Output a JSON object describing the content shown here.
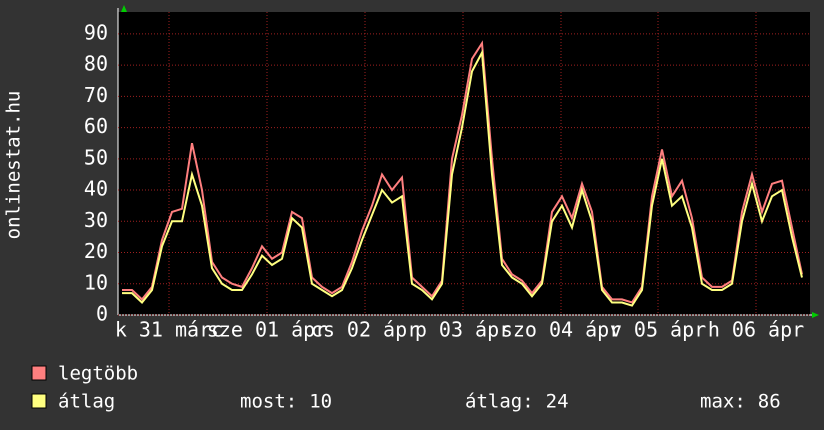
{
  "chart_data": {
    "type": "line",
    "ylabel": "onlinestat.hu",
    "x": [
      0,
      1,
      2,
      3,
      4,
      5,
      6,
      7,
      8,
      9,
      10,
      11,
      12,
      13,
      14,
      15,
      16,
      17,
      18,
      19,
      20,
      21,
      22,
      23,
      24,
      25,
      26,
      27,
      28,
      29,
      30,
      31,
      32,
      33,
      34,
      35,
      36,
      37,
      38,
      39,
      40,
      41,
      42,
      43,
      44,
      45,
      46,
      47,
      48,
      49,
      50,
      51,
      52,
      53,
      54,
      55,
      56,
      57,
      58,
      59,
      60,
      61,
      62,
      63,
      64,
      65,
      66,
      67,
      68
    ],
    "xlim": [
      -0.4,
      68.8
    ],
    "xticks": [
      {
        "value": 4.7,
        "label": "k 31 márc"
      },
      {
        "value": 14.5,
        "label": "sze 01 ápr"
      },
      {
        "value": 24.3,
        "label": "cs 02 ápr"
      },
      {
        "value": 34.1,
        "label": "p 03 ápr"
      },
      {
        "value": 43.9,
        "label": "szo 04 ápr"
      },
      {
        "value": 53.6,
        "label": "v 05 ápr"
      },
      {
        "value": 63.4,
        "label": "h 06 ápr"
      }
    ],
    "ylim": [
      0,
      97
    ],
    "yticks": [
      0,
      10,
      20,
      30,
      40,
      50,
      60,
      70,
      80,
      90
    ],
    "grid": true,
    "series": [
      {
        "name": "legtöbb",
        "color": "#ff7f7f",
        "values": [
          8,
          8,
          5,
          9,
          24,
          33,
          34,
          55,
          40,
          17,
          12,
          10,
          9,
          15,
          22,
          18,
          20,
          33,
          31,
          12,
          9,
          7,
          9,
          17,
          27,
          35,
          45,
          40,
          44,
          12,
          9,
          6,
          11,
          50,
          64,
          82,
          87,
          50,
          18,
          13,
          11,
          7,
          11,
          33,
          38,
          31,
          42,
          33,
          9,
          5,
          5,
          4,
          9,
          38,
          53,
          38,
          43,
          31,
          12,
          9,
          9,
          11,
          33,
          45,
          33,
          42,
          43,
          28,
          13
        ]
      },
      {
        "name": "átlag",
        "color": "#ffff80",
        "values": [
          7,
          7,
          4,
          8,
          22,
          30,
          30,
          45,
          35,
          15,
          10,
          8,
          8,
          13,
          19,
          16,
          18,
          31,
          28,
          10,
          8,
          6,
          8,
          15,
          24,
          32,
          40,
          36,
          38,
          10,
          8,
          5,
          10,
          45,
          60,
          78,
          84,
          45,
          16,
          12,
          10,
          6,
          10,
          30,
          35,
          28,
          40,
          30,
          8,
          4,
          4,
          3,
          8,
          35,
          50,
          35,
          38,
          28,
          10,
          8,
          8,
          10,
          30,
          42,
          30,
          38,
          40,
          25,
          12
        ]
      }
    ],
    "stats": [
      {
        "label": "most:",
        "value": 10
      },
      {
        "label": "átlag:",
        "value": 24
      },
      {
        "label": "max:",
        "value": 86
      }
    ]
  }
}
